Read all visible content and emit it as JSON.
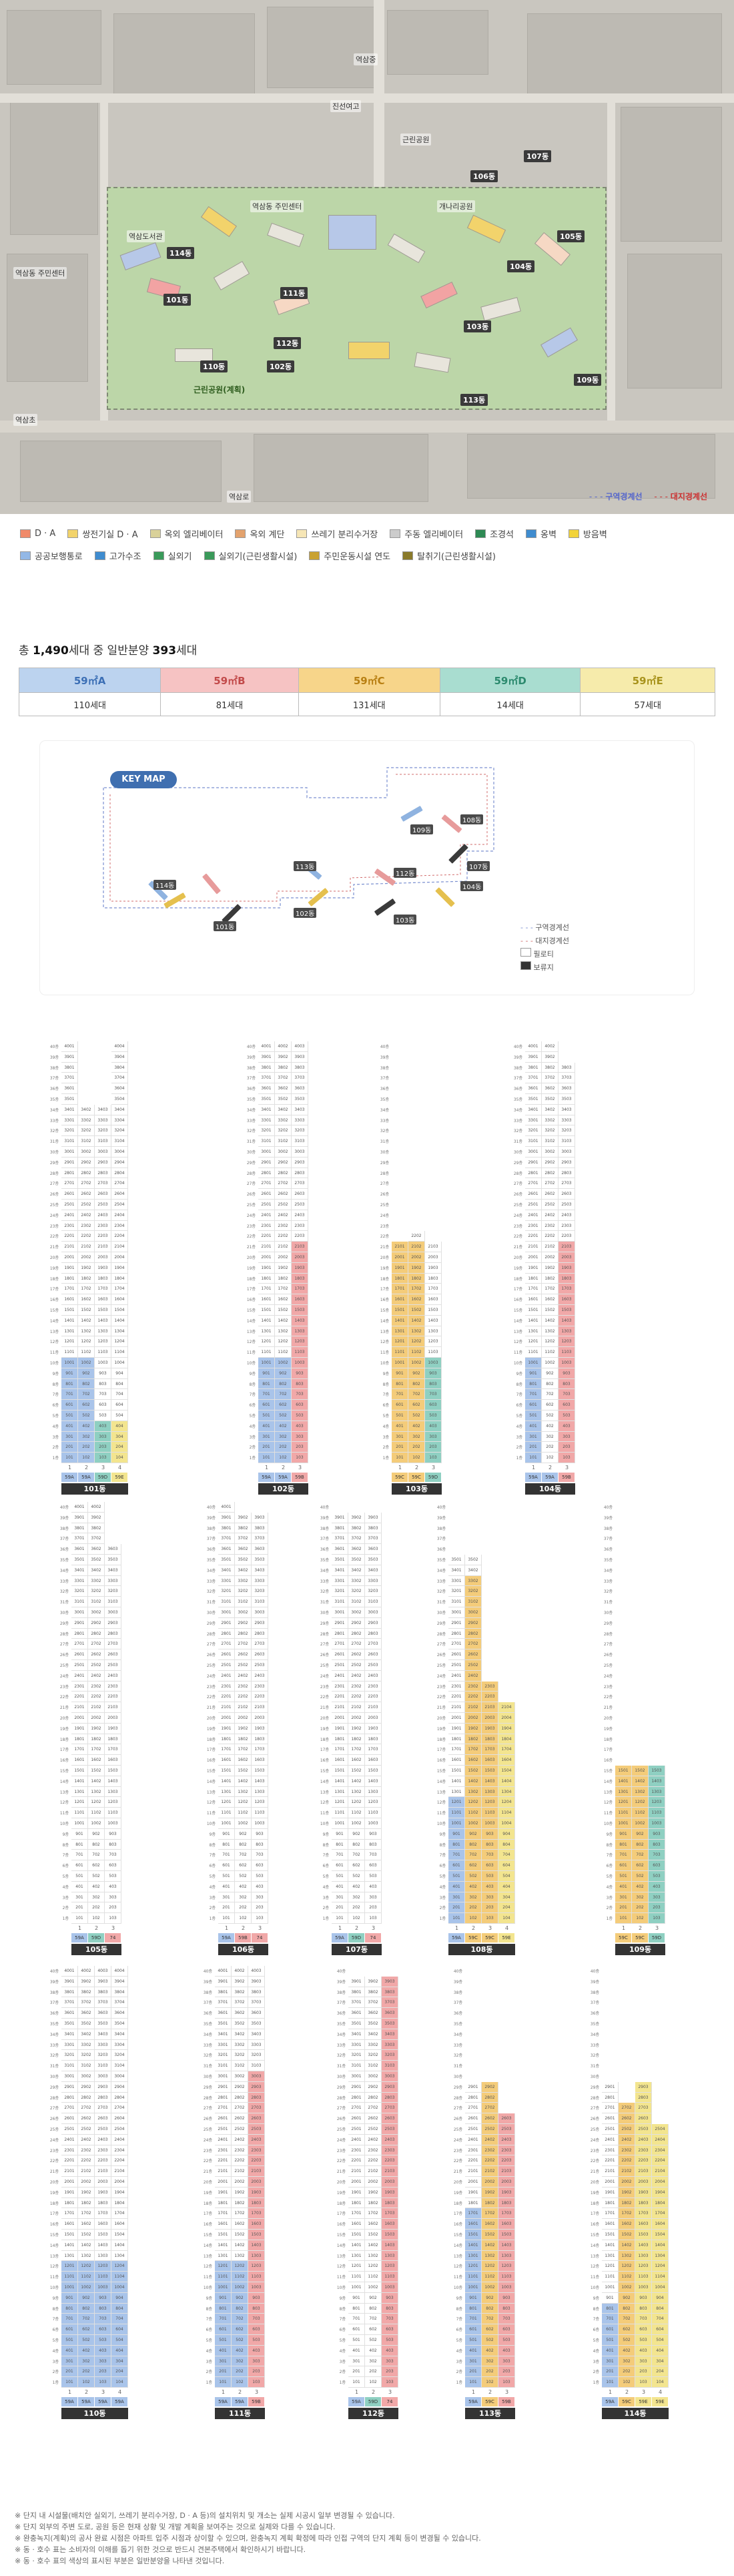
{
  "sitemap": {
    "labels": [
      "역삼동 주민센터",
      "역삼동 주민센터",
      "개나리공원",
      "근린공원",
      "역삼초",
      "역삼중",
      "진선여고",
      "역삼로",
      "역삼도서관"
    ],
    "green": "근린공원(계획)",
    "legend": [
      "구역경계선",
      "대지경계선"
    ]
  },
  "legend": {
    "row1": [
      {
        "label": "D · A",
        "color": "#f08a6a"
      },
      {
        "label": "쌍전기실 D · A",
        "color": "#f2d36b"
      },
      {
        "label": "옥외 엘리베이터",
        "color": "#d9d19a"
      },
      {
        "label": "옥외 계단",
        "color": "#e3a26d"
      },
      {
        "label": "쓰레기 분리수거장",
        "color": "#f6e6b6"
      },
      {
        "label": "주동 엘리베이터",
        "color": "#cccccc"
      },
      {
        "label": "조경석",
        "color": "#2e8a54"
      },
      {
        "label": "옹벽",
        "color": "#3f8ccf"
      },
      {
        "label": "방음벽",
        "color": "#f2d33a"
      }
    ],
    "row2": [
      {
        "label": "공공보행통로",
        "color": "#93b8e6"
      },
      {
        "label": "고가수조",
        "color": "#3f8ccf"
      },
      {
        "label": "실외기",
        "color": "#3a9a5a"
      },
      {
        "label": "실외기(근린생활시설)",
        "color": "#3a9a5a"
      },
      {
        "label": "주민운동시설 연도",
        "color": "#c9a232"
      },
      {
        "label": "탈취기(근린생활시설)",
        "color": "#8a7a2a"
      }
    ]
  },
  "summary": {
    "prefix": "총",
    "total": "1,490",
    "mid": "세대 중 일반분양",
    "sale": "393",
    "suffix": "세대"
  },
  "types": [
    {
      "name": "59㎡A",
      "count": "110세대",
      "color": "#bcd3ef",
      "text": "#3c6fb5"
    },
    {
      "name": "59㎡B",
      "count": "81세대",
      "color": "#f6c3c3",
      "text": "#c24a4a"
    },
    {
      "name": "59㎡C",
      "count": "131세대",
      "color": "#f7d58a",
      "text": "#b87f12"
    },
    {
      "name": "59㎡D",
      "count": "14세대",
      "color": "#a9ddd0",
      "text": "#2c8a6e"
    },
    {
      "name": "59㎡E",
      "count": "57세대",
      "color": "#f6ebab",
      "text": "#a8931c"
    }
  ],
  "keymap": {
    "title": "KEY MAP",
    "legend": [
      "구역경계선",
      "대지경계선",
      "필로티",
      "보류지"
    ]
  },
  "colors": {
    "A": "#a9c4ea",
    "B": "#f1a8a8",
    "C": "#f4cc7a",
    "D": "#8fd0c2",
    "E": "#f3e58f",
    "X": "#444444",
    "N": "#ffffff"
  },
  "dongs": [
    {
      "name": "101동",
      "lines": "1,2,3,4",
      "types": "59A,59A,59D,59E",
      "floors": "40,34,34,40",
      "sale": "A:1-10,A:1-10,D:1-4,E:1-4"
    },
    {
      "name": "102동",
      "lines": "1,2,3",
      "types": "59A,59A,59B",
      "floors": "40,40,40",
      "sale": "A:1-10,A:1-10,B:1-21"
    },
    {
      "name": "103동",
      "lines": "1,2,3",
      "types": "59C,59C,59D",
      "floors": "21,22,21",
      "sale": "C:1-21,C:1-21,D:1-10"
    },
    {
      "name": "104동",
      "lines": "1,2,3",
      "types": "59A,59A,59B",
      "floors": "40,40,38",
      "sale": "A:1-10,N:0,B:1-21"
    },
    {
      "name": "105동",
      "lines": "1,2,3",
      "types": "59A,59D,74",
      "floors": "40,40,36",
      "sale": "N:0,N:0,N:0"
    },
    {
      "name": "106동",
      "lines": "1,2,3",
      "types": "59A,59B,74",
      "floors": "40,39,39",
      "sale": "N:0,N:0,N:0"
    },
    {
      "name": "107동",
      "lines": "1,2,3",
      "types": "59A,59D,74",
      "floors": "39,39,39",
      "sale": "N:0,N:0,N:0"
    },
    {
      "name": "108동",
      "lines": "1,2,3,4",
      "types": "59A,59C,59C,59E",
      "floors": "35,35,23,21",
      "sale": "A:1-12,C:1-33,C:1-23,E:1-21"
    },
    {
      "name": "109동",
      "lines": "1,2,3",
      "types": "59C,59C,59D",
      "floors": "15,15,15",
      "sale": "C:1-15,C:1-15,D:1-15"
    },
    {
      "name": "110동",
      "lines": "1,2,3,4",
      "types": "59A,59A,59A,59A",
      "floors": "40,40,40,40",
      "sale": "A:1-12,A:1-12,A:1-12,A:1-12"
    },
    {
      "name": "111동",
      "lines": "1,2,3",
      "types": "59A,59A,59B",
      "floors": "40,40,40",
      "sale": "A:1-12,A:1-12,B:1-30"
    },
    {
      "name": "112동",
      "lines": "1,2,3",
      "types": "59A,59D,74",
      "floors": "39,39,39",
      "sale": "N:0,N:0,B:1-39"
    },
    {
      "name": "113동",
      "lines": "1,2,3",
      "types": "59A,59C,59B",
      "floors": "29,29,26",
      "sale": "A:1-17,C:1-29,B:1-26"
    },
    {
      "name": "114동",
      "lines": "1,2,3,4",
      "types": "59A,59C,59E,59E",
      "floors": "29,27,29,25",
      "sale": "A:1-8,C:1-27,E:1-29,E:1-25"
    }
  ],
  "notes": [
    "※ 단지 내 시설물(배치안 실외기, 쓰레기 분리수거장, D · A 등)의 설치위치 및 개소는 실제 시공시 일부 변경될 수 있습니다.",
    "※ 단지 외부의 주변 도로, 공원 등은 현재 상황 및 개발 계획을 보여주는 것으로 실제와 다를 수 있습니다.",
    "※ 완충녹지(계획)의 공사 완료 시점은 아파트 입주 시점과 상이할 수 있으며, 완충녹지 계획 확정에 따라 인접 구역의 단지 계획 등이 변경될 수 있습니다.",
    "※ 동 · 호수 표는 소비자의 이해를 돕기 위한 것으로 반드시 견본주택에서 확인하시기 바랍니다.",
    "※ 동 · 호수 표의 색상의 표시된 부분은 일반분양을 나타낸 것입니다."
  ]
}
